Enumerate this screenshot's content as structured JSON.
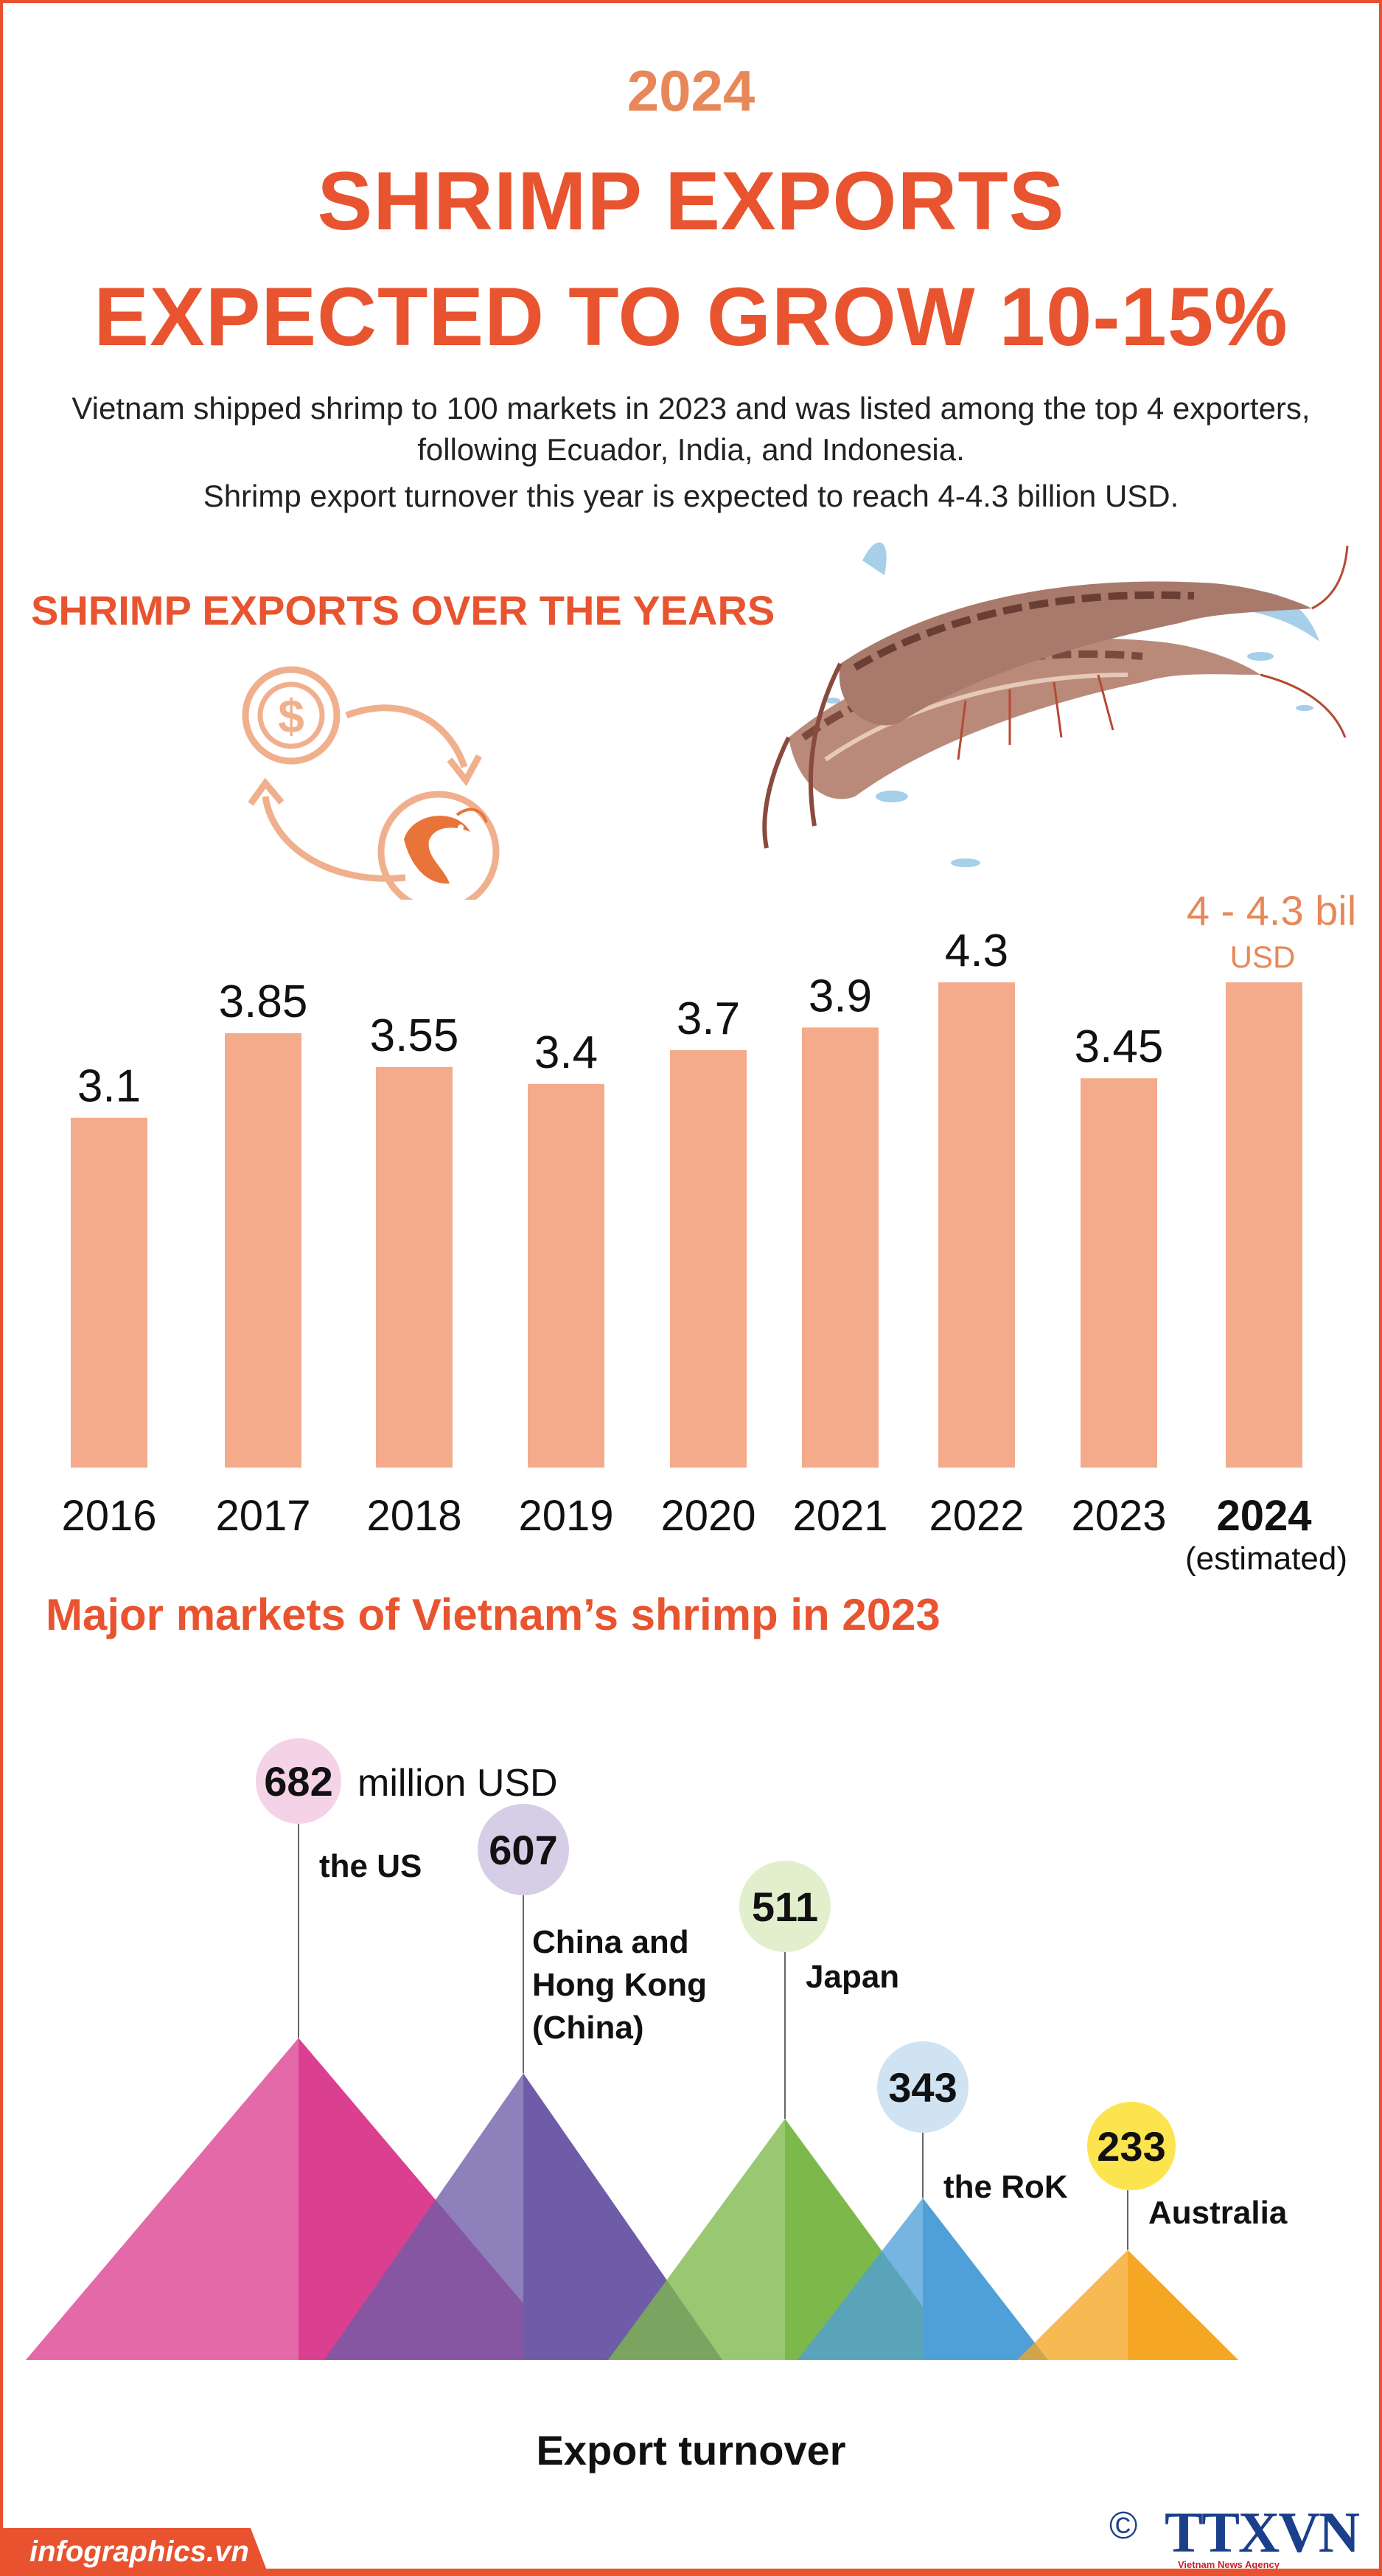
{
  "header": {
    "year": "2024",
    "title_line1": "SHRIMP EXPORTS",
    "title_line2": "EXPECTED TO GROW 10-15%",
    "intro_line1": "Vietnam shipped shrimp to 100 markets in 2023 and was listed among the top 4 exporters,",
    "intro_line2": "following Ecuador, India, and Indonesia.",
    "intro_line3": "Shrimp export turnover this year is expected to reach 4-4.3 billion USD."
  },
  "section1_title": "SHRIMP EXPORTS OVER THE YEARS",
  "section2_title": "Major markets of Vietnam’s shrimp in 2023",
  "icons": [
    "dollar-icon",
    "shrimp-icon",
    "cycle-arrow-icon",
    "shrimp-photo"
  ],
  "chart_data": [
    {
      "type": "bar",
      "title": "SHRIMP EXPORTS OVER THE YEARS",
      "categories": [
        "2016",
        "2017",
        "2018",
        "2019",
        "2020",
        "2021",
        "2022",
        "2023",
        "2024"
      ],
      "values": [
        3.1,
        3.85,
        3.55,
        3.4,
        3.7,
        3.9,
        4.3,
        3.45,
        4.3
      ],
      "value_labels": [
        "3.1",
        "3.85",
        "3.55",
        "3.4",
        "3.7",
        "3.9",
        "4.3",
        "3.45",
        "4 - 4.3 bil"
      ],
      "estimate_unit": "USD",
      "estimate_note": "(estimated)",
      "estimate_range": [
        4,
        4.3
      ],
      "bar_color": "#f4ab8b",
      "highlight_color": "#e8885a"
    },
    {
      "type": "bar",
      "title": "Major markets of Vietnam’s shrimp in 2023",
      "xlabel": "Export turnover",
      "unit": "million USD",
      "categories": [
        "the US",
        "China and Hong Kong (China)",
        "Japan",
        "the RoK",
        "Australia"
      ],
      "category_lines": [
        [
          "the US"
        ],
        [
          "China and",
          "Hong Kong",
          "(China)"
        ],
        [
          "Japan"
        ],
        [
          "the RoK"
        ],
        [
          "Australia"
        ]
      ],
      "values": [
        682,
        607,
        511,
        343,
        233
      ],
      "colors": [
        "#db3f8f",
        "#6e5ca8",
        "#7db84a",
        "#4f9fd8",
        "#f5a623"
      ],
      "circle_colors": [
        "#f5d3e6",
        "#d6cde6",
        "#e2efcd",
        "#cfe3f3",
        "#fbe44e"
      ]
    }
  ],
  "footer": {
    "site": "infographics.vn",
    "copyright": "©",
    "agency": "TTXVN",
    "agency_sub": "Vietnam News Agency",
    "accent": "#e8522f"
  }
}
